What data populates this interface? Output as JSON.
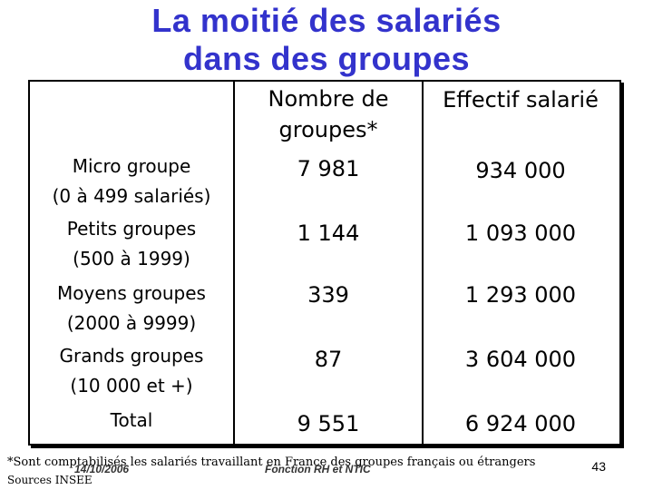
{
  "title": {
    "line1": "La moitié des salariés",
    "line2": "dans des groupes"
  },
  "table": {
    "header": {
      "col1": "Nombre de groupes*",
      "col1_line1": "Nombre de",
      "col1_line2": "groupes*",
      "col2": "Effectif salarié"
    },
    "rows": [
      {
        "label1": "Micro groupe",
        "label2": "(0 à 499 salariés)",
        "groups": "7 981",
        "employees": "934 000"
      },
      {
        "label1": "Petits groupes",
        "label2": "(500 à 1999)",
        "groups": "1 144",
        "employees": "1 093 000"
      },
      {
        "label1": "Moyens groupes",
        "label2": "(2000 à 9999)",
        "groups": "339",
        "employees": "1 293 000"
      },
      {
        "label1": "Grands groupes",
        "label2": "(10 000 et +)",
        "groups": "87",
        "employees": "3 604 000"
      },
      {
        "label1": "Total",
        "label2": "",
        "groups": "9 551",
        "employees": "6 924 000"
      }
    ]
  },
  "footer": {
    "footnote": "*Sont comptabilisés les salariés travaillant en France des groupes français ou étrangers",
    "source": "Sources INSEE",
    "date": "14/10/2006",
    "label": "Fonction RH et NTIC",
    "page_number": "43"
  }
}
